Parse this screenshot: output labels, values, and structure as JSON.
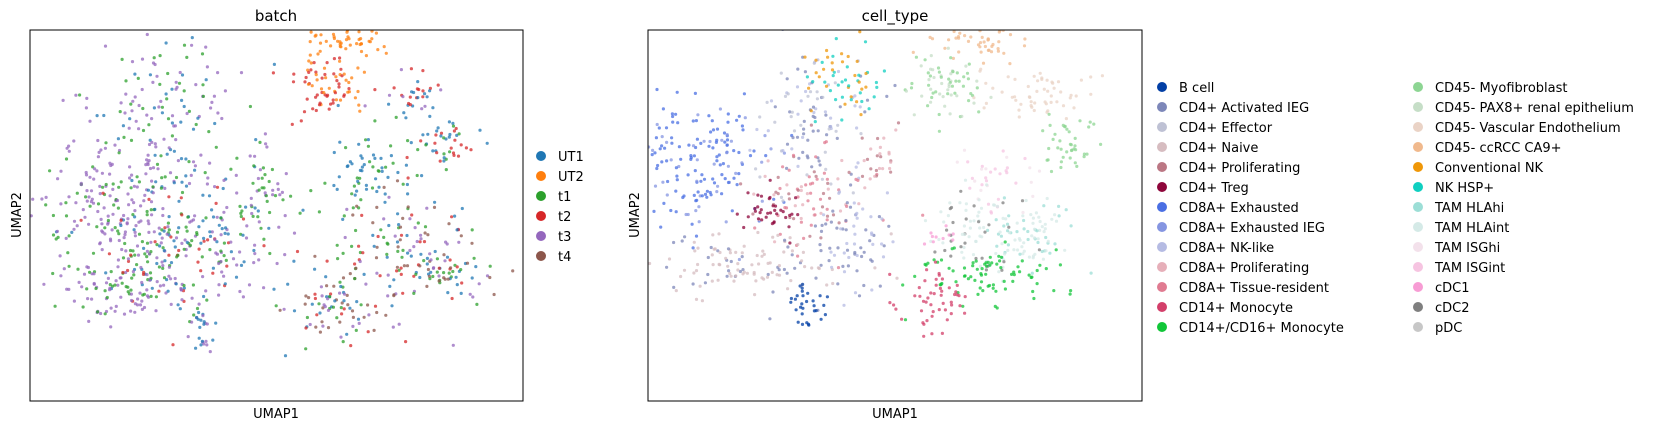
{
  "chart_data": [
    {
      "type": "scatter",
      "title": "batch",
      "xlabel": "UMAP1",
      "ylabel": "UMAP2",
      "legend_position": "right",
      "grid": false,
      "ticks": "none",
      "legend": [
        {
          "label": "UT1",
          "color": "#1f77b4"
        },
        {
          "label": "UT2",
          "color": "#ff7f0e"
        },
        {
          "label": "t1",
          "color": "#2ca02c"
        },
        {
          "label": "t2",
          "color": "#d62728"
        },
        {
          "label": "t3",
          "color": "#9467bd"
        },
        {
          "label": "t4",
          "color": "#8c564b"
        }
      ]
    },
    {
      "type": "scatter",
      "title": "cell_type",
      "xlabel": "UMAP1",
      "ylabel": "UMAP2",
      "legend_position": "right",
      "grid": false,
      "ticks": "none",
      "legend": [
        {
          "label": "B cell",
          "color": "#023fa5"
        },
        {
          "label": "CD4+ Activated IEG",
          "color": "#7d87b9"
        },
        {
          "label": "CD4+ Effector",
          "color": "#bec1d4"
        },
        {
          "label": "CD4+ Naive",
          "color": "#d6bcc0"
        },
        {
          "label": "CD4+ Proliferating",
          "color": "#bb7784"
        },
        {
          "label": "CD4+ Treg",
          "color": "#8e063b"
        },
        {
          "label": "CD8A+ Exhausted",
          "color": "#4a6fe3"
        },
        {
          "label": "CD8A+ Exhausted IEG",
          "color": "#8595e1"
        },
        {
          "label": "CD8A+ NK-like",
          "color": "#b5bbe3"
        },
        {
          "label": "CD8A+ Proliferating",
          "color": "#e6afb9"
        },
        {
          "label": "CD8A+ Tissue-resident",
          "color": "#e07b91"
        },
        {
          "label": "CD14+ Monocyte",
          "color": "#d33f6a"
        },
        {
          "label": "CD14+/CD16+ Monocyte",
          "color": "#11c638"
        },
        {
          "label": "CD45- Myofibroblast",
          "color": "#8dd593"
        },
        {
          "label": "CD45- PAX8+ renal epithelium",
          "color": "#c6dec7"
        },
        {
          "label": "CD45- Vascular Endothelium",
          "color": "#ead3c6"
        },
        {
          "label": "CD45- ccRCC CA9+",
          "color": "#f0b98d"
        },
        {
          "label": "Conventional NK",
          "color": "#ef9708"
        },
        {
          "label": "NK HSP+",
          "color": "#0fcfc0"
        },
        {
          "label": "TAM HLAhi",
          "color": "#9cded6"
        },
        {
          "label": "TAM HLAint",
          "color": "#d5eae7"
        },
        {
          "label": "TAM ISGhi",
          "color": "#f3e1eb"
        },
        {
          "label": "TAM ISGint",
          "color": "#f6c4e1"
        },
        {
          "label": "cDC1",
          "color": "#f79cd4"
        },
        {
          "label": "cDC2",
          "color": "#7f7f7f"
        },
        {
          "label": "pDC",
          "color": "#c7c7c7"
        }
      ]
    }
  ]
}
